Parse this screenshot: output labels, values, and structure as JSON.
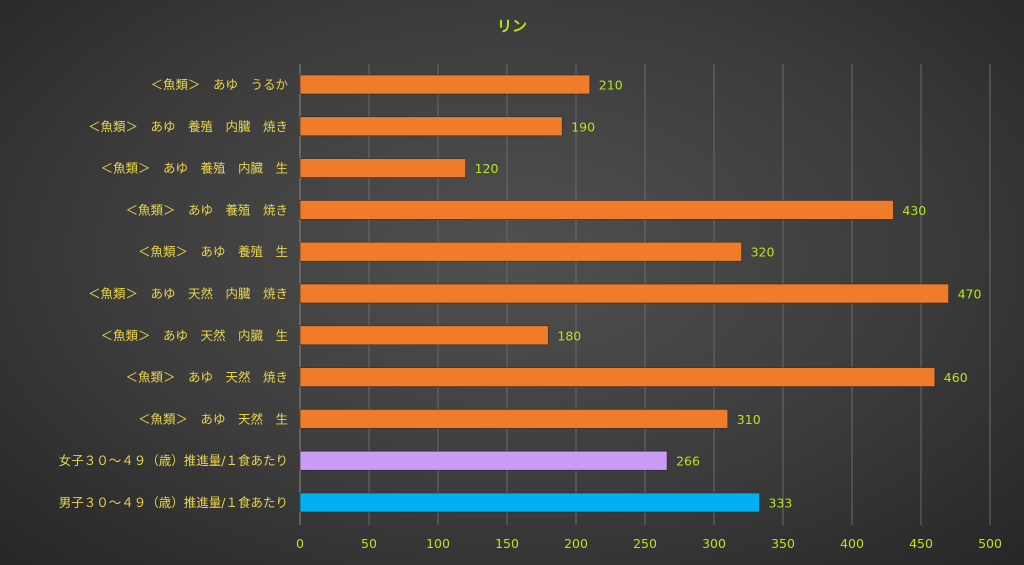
{
  "chart_data": {
    "type": "bar",
    "orientation": "horizontal",
    "title": "リン",
    "xlabel": "",
    "ylabel": "",
    "xlim": [
      0,
      500
    ],
    "ticks": [
      0,
      50,
      100,
      150,
      200,
      250,
      300,
      350,
      400,
      450,
      500
    ],
    "grid": true,
    "legend": "none",
    "categories": [
      "＜魚類＞　あゆ　うるか",
      "＜魚類＞　あゆ　養殖　内臓　焼き",
      "＜魚類＞　あゆ　養殖　内臓　生",
      "＜魚類＞　あゆ　養殖　焼き",
      "＜魚類＞　あゆ　養殖　生",
      "＜魚類＞　あゆ　天然　内臓　焼き",
      "＜魚類＞　あゆ　天然　内臓　生",
      "＜魚類＞　あゆ　天然　焼き",
      "＜魚類＞　あゆ　天然　生",
      "女子３０～４９（歳）推進量/１食あたり",
      "男子３０～４９（歳）推進量/１食あたり"
    ],
    "values": [
      210,
      190,
      120,
      430,
      320,
      470,
      180,
      460,
      310,
      266,
      333
    ],
    "bar_colors": [
      "#f07c2a",
      "#f07c2a",
      "#f07c2a",
      "#f07c2a",
      "#f07c2a",
      "#f07c2a",
      "#f07c2a",
      "#f07c2a",
      "#f07c2a",
      "#c99cf5",
      "#00b0f0"
    ]
  }
}
